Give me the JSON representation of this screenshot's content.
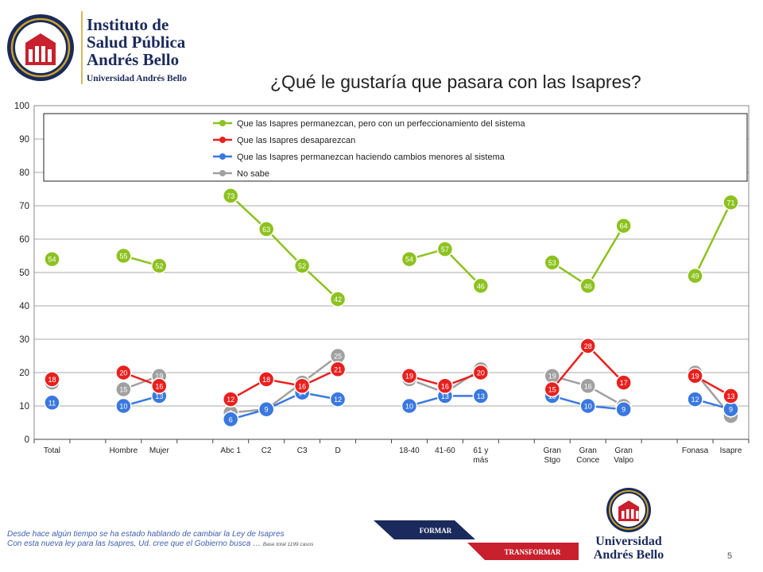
{
  "header": {
    "institute_line1": "Instituto de",
    "institute_line2": "Salud Pública",
    "institute_line3": "Andrés Bello",
    "institute_line4": "Universidad Andrés Bello",
    "title": "¿Qué le gustaría que pasara con las Isapres?"
  },
  "chart_data": {
    "type": "line",
    "title": "",
    "xlabel": "",
    "ylabel": "",
    "ylim": [
      0,
      100
    ],
    "yticks": [
      0,
      10,
      20,
      30,
      40,
      50,
      60,
      70,
      80,
      90,
      100
    ],
    "grid": true,
    "legend_position": "top",
    "categories": [
      {
        "label": [
          "Total"
        ],
        "index": 0
      },
      {
        "label": [
          "Hombre"
        ],
        "index": 2
      },
      {
        "label": [
          "Mujer"
        ],
        "index": 3
      },
      {
        "label": [
          "Abc 1"
        ],
        "index": 5
      },
      {
        "label": [
          "C2"
        ],
        "index": 6
      },
      {
        "label": [
          "C3"
        ],
        "index": 7
      },
      {
        "label": [
          "D"
        ],
        "index": 8
      },
      {
        "label": [
          "18-40"
        ],
        "index": 10
      },
      {
        "label": [
          "41-60"
        ],
        "index": 11
      },
      {
        "label": [
          "61 y",
          "más"
        ],
        "index": 12
      },
      {
        "label": [
          "Gran",
          "Stgo"
        ],
        "index": 14
      },
      {
        "label": [
          "Gran",
          "Conce"
        ],
        "index": 15
      },
      {
        "label": [
          "Gran",
          "Valpo"
        ],
        "index": 16
      },
      {
        "label": [
          "Fonasa"
        ],
        "index": 18
      },
      {
        "label": [
          "Isapre"
        ],
        "index": 19
      }
    ],
    "groups": [
      [
        0
      ],
      [
        1,
        2
      ],
      [
        3,
        4,
        5,
        6
      ],
      [
        7,
        8,
        9
      ],
      [
        10,
        11,
        12
      ],
      [
        13,
        14
      ]
    ],
    "series": [
      {
        "name": "Que las Isapres permanezcan, pero con un perfeccionamiento del sistema",
        "color": "#8dc21f",
        "values": [
          54,
          55,
          52,
          73,
          63,
          52,
          42,
          54,
          57,
          46,
          53,
          46,
          64,
          49,
          71
        ],
        "labels": [
          "54",
          "55",
          "52",
          "73",
          "63",
          "52",
          "42",
          "54",
          "57",
          "46",
          "53",
          "46",
          "64",
          "49",
          "71"
        ]
      },
      {
        "name": "Que las Isapres desaparezcan",
        "color": "#e8201e",
        "values": [
          18,
          20,
          16,
          12,
          18,
          16,
          21,
          19,
          16,
          20,
          15,
          28,
          17,
          19,
          13
        ],
        "labels": [
          "18",
          "20",
          "16",
          "12",
          "18",
          "16",
          "21",
          "19",
          "16",
          "20",
          "15",
          "28",
          "17",
          "19",
          "13"
        ]
      },
      {
        "name": "Que las Isapres permanezcan haciendo cambios menores al sistema",
        "color": "#3a78e0",
        "values": [
          11,
          10,
          13,
          6,
          9,
          14,
          12,
          10,
          13,
          13,
          13,
          10,
          9,
          12,
          9
        ],
        "labels": [
          "11",
          "10",
          "13",
          "6",
          "9",
          "14",
          "12",
          "10",
          "13",
          "13",
          "13",
          "10",
          "9",
          "12",
          "9"
        ]
      },
      {
        "name": "No sabe",
        "color": "#a0a0a0",
        "values": [
          17,
          15,
          19,
          8,
          9,
          17,
          25,
          18,
          14,
          21,
          19,
          16,
          10,
          20,
          7
        ],
        "labels": [
          "17",
          "15",
          "19",
          "8",
          "9",
          "17",
          "25",
          "18",
          "14",
          "21",
          "19",
          "16",
          "10",
          "20",
          "7"
        ]
      }
    ]
  },
  "footnote": {
    "line1": "Desde hace algún tiempo se ha estado hablando de cambiar la Ley de Isapres",
    "line2": "Con esta nueva ley para las Isapres, Ud. cree que el Gobierno busca …",
    "base": "Base total 1199 casos"
  },
  "banner": {
    "formar": "FORMAR",
    "transformar": "TRANSFORMAR"
  },
  "bottom_logo": {
    "line1": "Universidad",
    "line2": "Andrés Bello"
  },
  "page_number": "5",
  "colors": {
    "navy": "#1b2a5c",
    "red": "#c8202d",
    "gold": "#c9a227"
  }
}
